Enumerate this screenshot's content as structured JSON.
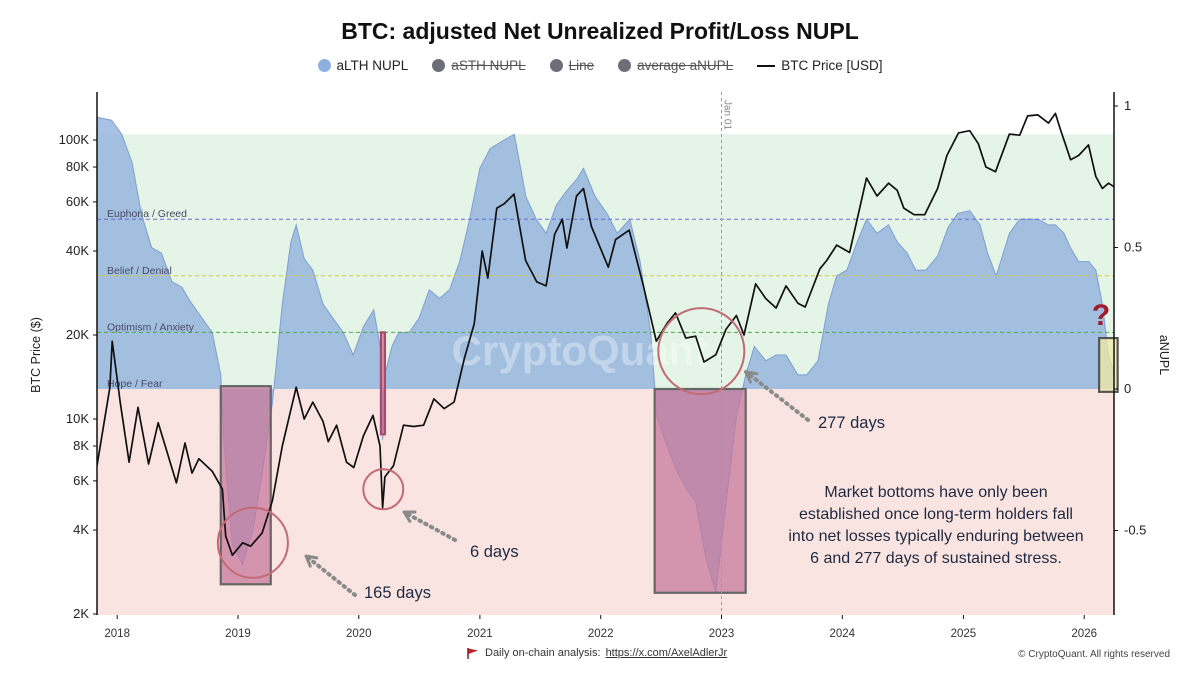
{
  "chart_data": {
    "type": "area",
    "title": "BTC: adjusted Net Unrealized Profit/Loss NUPL",
    "legend": [
      {
        "name": "aLTH NUPL",
        "color": "#8fb0de",
        "kind": "dot",
        "active": true
      },
      {
        "name": "aSTH NUPL",
        "color": "#6e6e78",
        "kind": "dot",
        "active": false
      },
      {
        "name": "Line",
        "color": "#6e6e78",
        "kind": "dot",
        "active": false
      },
      {
        "name": "average aNUPL",
        "color": "#6e6e78",
        "kind": "dot",
        "active": false
      },
      {
        "name": "BTC Price [USD]",
        "color": "#111111",
        "kind": "line",
        "active": true
      }
    ],
    "left_axis": {
      "label": "BTC Price ($)",
      "scale": "log",
      "range": [
        2000,
        200000
      ],
      "ticks": [
        {
          "v": 100000,
          "label": "100K"
        },
        {
          "v": 80000,
          "label": "80K"
        },
        {
          "v": 60000,
          "label": "60K"
        },
        {
          "v": 40000,
          "label": "40K"
        },
        {
          "v": 20000,
          "label": "20K"
        },
        {
          "v": 10000,
          "label": "10K"
        },
        {
          "v": 8000,
          "label": "8K"
        },
        {
          "v": 6000,
          "label": "6K"
        },
        {
          "v": 4000,
          "label": "4K"
        },
        {
          "v": 2000,
          "label": "2K"
        }
      ]
    },
    "right_axis": {
      "label": "aNUPL",
      "range": [
        -0.8,
        1.0
      ],
      "ticks": [
        {
          "v": 1,
          "label": "1"
        },
        {
          "v": 0.5,
          "label": "0.5"
        },
        {
          "v": 0,
          "label": "0"
        },
        {
          "v": -0.5,
          "label": "-0.5"
        }
      ]
    },
    "x_axis": {
      "range": [
        "2017-11-01",
        "2026-04-01"
      ],
      "ticks": [
        "2018",
        "2019",
        "2020",
        "2021",
        "2022",
        "2023",
        "2024",
        "2025",
        "2026"
      ]
    },
    "zones": [
      {
        "label": "Euphoria / Greed",
        "value": 0.6,
        "color": "#6a6ad8"
      },
      {
        "label": "Belief / Denial",
        "value": 0.4,
        "color": "#d8c84a"
      },
      {
        "label": "Optimism / Anxiety",
        "value": 0.2,
        "color": "#4caa4c"
      },
      {
        "label": "Hope / Fear",
        "value": 0.0,
        "color": "#777777"
      }
    ],
    "vline": {
      "date": "2023-01-01",
      "label": "Jan 01"
    },
    "series": [
      {
        "name": "aLTH NUPL",
        "x": [
          "2017-11-01",
          "2017-12-15",
          "2018-01-15",
          "2018-02-15",
          "2018-03-15",
          "2018-04-15",
          "2018-05-15",
          "2018-06-15",
          "2018-07-15",
          "2018-08-15",
          "2018-09-15",
          "2018-10-15",
          "2018-11-10",
          "2018-11-20",
          "2018-12-15",
          "2019-01-15",
          "2019-02-15",
          "2019-03-15",
          "2019-04-15",
          "2019-05-15",
          "2019-06-10",
          "2019-06-26",
          "2019-07-20",
          "2019-08-15",
          "2019-09-15",
          "2019-10-15",
          "2019-11-15",
          "2019-12-15",
          "2020-01-15",
          "2020-02-15",
          "2020-03-10",
          "2020-03-13",
          "2020-03-20",
          "2020-04-10",
          "2020-05-01",
          "2020-06-01",
          "2020-07-01",
          "2020-08-01",
          "2020-09-01",
          "2020-10-01",
          "2020-11-01",
          "2020-12-01",
          "2021-01-01",
          "2021-02-01",
          "2021-03-15",
          "2021-04-15",
          "2021-05-20",
          "2021-06-20",
          "2021-07-20",
          "2021-08-20",
          "2021-09-20",
          "2021-10-20",
          "2021-11-10",
          "2021-12-15",
          "2022-01-20",
          "2022-02-20",
          "2022-03-30",
          "2022-04-30",
          "2022-06-01",
          "2022-06-20",
          "2022-07-20",
          "2022-08-15",
          "2022-09-15",
          "2022-10-15",
          "2022-11-15",
          "2022-12-15",
          "2023-01-15",
          "2023-02-15",
          "2023-03-15",
          "2023-04-10",
          "2023-05-15",
          "2023-06-15",
          "2023-07-15",
          "2023-08-20",
          "2023-09-15",
          "2023-10-20",
          "2023-11-20",
          "2023-12-15",
          "2024-01-15",
          "2024-02-15",
          "2024-03-14",
          "2024-04-15",
          "2024-05-20",
          "2024-06-15",
          "2024-07-15",
          "2024-08-10",
          "2024-09-10",
          "2024-10-15",
          "2024-11-15",
          "2024-12-15",
          "2025-01-20",
          "2025-02-20",
          "2025-03-15",
          "2025-04-10",
          "2025-05-20",
          "2025-06-20",
          "2025-07-15",
          "2025-08-15",
          "2025-09-15",
          "2025-10-06",
          "2025-11-01",
          "2025-11-20",
          "2025-12-15",
          "2026-01-15",
          "2026-02-05",
          "2026-02-25",
          "2026-03-15",
          "2026-04-01"
        ],
        "values": [
          0.96,
          0.95,
          0.9,
          0.8,
          0.62,
          0.5,
          0.48,
          0.38,
          0.36,
          0.3,
          0.25,
          0.2,
          0.05,
          -0.2,
          -0.55,
          -0.62,
          -0.5,
          -0.3,
          -0.05,
          0.3,
          0.52,
          0.58,
          0.46,
          0.42,
          0.3,
          0.25,
          0.2,
          0.12,
          0.22,
          0.28,
          0.12,
          -0.18,
          0.05,
          0.15,
          0.2,
          0.2,
          0.25,
          0.35,
          0.32,
          0.35,
          0.45,
          0.6,
          0.78,
          0.85,
          0.88,
          0.9,
          0.68,
          0.6,
          0.55,
          0.65,
          0.7,
          0.74,
          0.78,
          0.68,
          0.62,
          0.55,
          0.6,
          0.45,
          0.2,
          -0.1,
          -0.2,
          -0.28,
          -0.35,
          -0.4,
          -0.6,
          -0.72,
          -0.4,
          -0.1,
          0.05,
          0.15,
          0.1,
          0.12,
          0.12,
          0.05,
          0.05,
          0.1,
          0.3,
          0.4,
          0.42,
          0.52,
          0.6,
          0.55,
          0.58,
          0.52,
          0.48,
          0.42,
          0.42,
          0.47,
          0.57,
          0.62,
          0.63,
          0.58,
          0.48,
          0.4,
          0.55,
          0.6,
          0.6,
          0.6,
          0.58,
          0.58,
          0.55,
          0.5,
          0.45,
          0.45,
          0.42,
          0.3,
          0.12,
          0.06
        ]
      },
      {
        "name": "BTC Price [USD]",
        "x": [
          "2017-11-01",
          "2017-12-10",
          "2017-12-17",
          "2018-01-10",
          "2018-02-06",
          "2018-03-05",
          "2018-04-06",
          "2018-05-05",
          "2018-06-29",
          "2018-07-25",
          "2018-08-15",
          "2018-09-05",
          "2018-10-15",
          "2018-11-15",
          "2018-11-25",
          "2018-12-15",
          "2019-01-15",
          "2019-02-08",
          "2019-03-15",
          "2019-04-15",
          "2019-05-15",
          "2019-06-26",
          "2019-07-20",
          "2019-08-15",
          "2019-09-15",
          "2019-10-01",
          "2019-10-26",
          "2019-11-25",
          "2019-12-17",
          "2020-01-15",
          "2020-02-13",
          "2020-03-05",
          "2020-03-13",
          "2020-03-20",
          "2020-04-15",
          "2020-05-15",
          "2020-06-15",
          "2020-07-15",
          "2020-08-15",
          "2020-09-15",
          "2020-10-15",
          "2020-11-15",
          "2020-12-15",
          "2021-01-08",
          "2021-01-25",
          "2021-02-21",
          "2021-03-15",
          "2021-04-14",
          "2021-05-19",
          "2021-06-22",
          "2021-07-20",
          "2021-08-15",
          "2021-09-07",
          "2021-09-21",
          "2021-10-20",
          "2021-11-10",
          "2021-12-04",
          "2022-01-24",
          "2022-02-15",
          "2022-03-28",
          "2022-05-10",
          "2022-06-18",
          "2022-07-20",
          "2022-08-15",
          "2022-09-15",
          "2022-10-15",
          "2022-11-09",
          "2022-12-15",
          "2023-01-15",
          "2023-02-15",
          "2023-03-10",
          "2023-04-14",
          "2023-05-15",
          "2023-06-15",
          "2023-07-15",
          "2023-08-20",
          "2023-09-11",
          "2023-10-25",
          "2023-11-15",
          "2023-12-15",
          "2024-01-23",
          "2024-02-15",
          "2024-03-14",
          "2024-04-15",
          "2024-05-20",
          "2024-06-15",
          "2024-07-05",
          "2024-08-05",
          "2024-09-06",
          "2024-10-15",
          "2024-11-12",
          "2024-12-17",
          "2025-01-20",
          "2025-02-15",
          "2025-03-10",
          "2025-04-08",
          "2025-05-20",
          "2025-06-20",
          "2025-07-14",
          "2025-08-14",
          "2025-09-15",
          "2025-10-06",
          "2025-10-20",
          "2025-11-21",
          "2025-12-15",
          "2026-01-14",
          "2026-02-05",
          "2026-02-25",
          "2026-03-15",
          "2026-04-01"
        ],
        "values": [
          6800,
          13000,
          19000,
          11500,
          7000,
          11000,
          6900,
          9700,
          5900,
          8200,
          6400,
          7200,
          6500,
          5600,
          3800,
          3250,
          3600,
          3500,
          3900,
          5100,
          8000,
          13000,
          10000,
          11500,
          9800,
          8300,
          9500,
          7000,
          6700,
          8700,
          10300,
          8000,
          4800,
          6200,
          6800,
          9500,
          9400,
          9500,
          11800,
          10900,
          11500,
          16500,
          22000,
          40000,
          32000,
          57000,
          59000,
          64000,
          37000,
          31000,
          30000,
          46000,
          52000,
          41000,
          63000,
          67000,
          49000,
          35000,
          44000,
          47500,
          30000,
          19000,
          22000,
          24000,
          19500,
          19800,
          16000,
          17000,
          21000,
          23500,
          20000,
          30500,
          27000,
          25000,
          30000,
          26000,
          25200,
          34500,
          37000,
          42000,
          39500,
          52000,
          73000,
          63000,
          70000,
          66000,
          57000,
          54000,
          54000,
          67000,
          88000,
          106000,
          108000,
          97000,
          80000,
          77000,
          105000,
          104000,
          122000,
          123000,
          115000,
          124500,
          110000,
          85000,
          88000,
          96000,
          74000,
          67000,
          70000,
          68000
        ]
      }
    ],
    "highlight_boxes": [
      {
        "start": "2018-11-10",
        "end": "2019-04-10",
        "top": 0.01,
        "bottom": -0.69,
        "fill": "#c87a9b",
        "stroke": "#666666"
      },
      {
        "start": "2020-03-08",
        "end": "2020-03-20",
        "top": 0.2,
        "bottom": -0.16,
        "fill": "#c87a9b",
        "stroke": "#a84a6b"
      },
      {
        "start": "2022-06-13",
        "end": "2023-03-15",
        "top": 0.0,
        "bottom": -0.72,
        "fill": "#c87a9b",
        "stroke": "#666666"
      },
      {
        "start": "2026-02-15",
        "end": "2026-04-12",
        "top": 0.18,
        "bottom": -0.01,
        "fill": "#f0e9a3",
        "stroke": "#555555"
      }
    ],
    "circles": [
      {
        "date": "2019-02-15",
        "price": 3600
      },
      {
        "date": "2020-03-15",
        "price": 5600
      },
      {
        "date": "2022-11-01",
        "price": 17500
      }
    ],
    "annotations": [
      {
        "label": "165 days"
      },
      {
        "label": "6 days"
      },
      {
        "label": "277 days"
      },
      {
        "label": "?"
      }
    ],
    "note_lines": [
      "Market bottoms have only been",
      "established once long-term holders fall",
      "into net losses typically enduring between",
      "6 and 277 days of sustained stress."
    ],
    "watermark": "CryptoQuant"
  },
  "footer": {
    "left_text": "Daily on-chain analysis:",
    "link_text": "https://x.com/AxelAdlerJr",
    "right_text": "© CryptoQuant. All rights reserved"
  }
}
